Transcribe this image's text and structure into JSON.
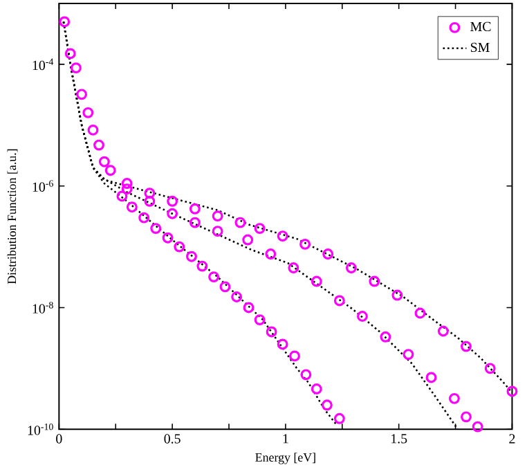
{
  "chart_data": {
    "type": "scatter",
    "xlabel": "Energy  [eV]",
    "ylabel": "Distribution Function  [a.u.]",
    "log": "y",
    "grid": false,
    "legend": "top right",
    "xlim": [
      0,
      2
    ],
    "ylim": [
      1e-10,
      0.001
    ],
    "xticks": [
      0,
      {
        "value": 0.25,
        "label": null
      },
      0.5,
      {
        "value": 0.75,
        "label": null
      },
      1,
      {
        "value": 1.25,
        "label": null
      },
      1.5,
      {
        "value": 1.75,
        "label": null
      },
      2
    ],
    "yticks": [
      {
        "value": 1e-10,
        "label": "10$^{-10}$"
      },
      {
        "value": 1e-08,
        "label": "10$^{-8}$"
      },
      {
        "value": 1e-06,
        "label": "10$^{-6}$"
      },
      {
        "value": 0.0001,
        "label": "10$^{-4}$"
      }
    ],
    "series": [
      {
        "name": "MC",
        "marker": "circle",
        "color": "#ff00ff",
        "x": [
          0.024,
          0.05,
          0.075,
          0.1,
          0.128,
          0.15,
          0.176,
          0.2,
          0.227,
          0.3,
          0.4,
          0.5,
          0.6,
          0.7,
          0.8,
          0.886,
          0.987,
          1.086,
          1.187,
          1.29,
          1.392,
          1.493,
          1.594,
          1.696,
          1.797,
          1.903,
          2.0
        ],
        "values": [
          0.0005,
          0.00015,
          8.7e-05,
          3.2e-05,
          1.6e-05,
          8.3e-06,
          4.7e-06,
          2.5e-06,
          1.8e-06,
          1.1e-06,
          7.6e-07,
          5.6e-07,
          4.2e-07,
          3.2e-07,
          2.5e-07,
          2e-07,
          1.5e-07,
          1.1e-07,
          7.6e-08,
          4.5e-08,
          2.7e-08,
          1.6e-08,
          8.1e-09,
          4.1e-09,
          2.3e-09,
          1e-09,
          4.2e-10
        ]
      },
      {
        "marker": "circle",
        "color": "#ff00ff",
        "x": [
          0.3,
          0.4,
          0.5,
          0.6,
          0.7,
          0.833,
          0.934,
          1.035,
          1.137,
          1.238,
          1.339,
          1.441,
          1.542,
          1.643,
          1.745,
          1.797,
          1.848
        ],
        "values": [
          8.9e-07,
          5.6e-07,
          3.5e-07,
          2.5e-07,
          1.8e-07,
          1.3e-07,
          7.6e-08,
          4.5e-08,
          2.7e-08,
          1.3e-08,
          7.2e-09,
          3.3e-09,
          1.7e-09,
          7.1e-10,
          3.2e-10,
          1.6e-10,
          1.1e-10
        ]
      },
      {
        "marker": "circle",
        "color": "#ff00ff",
        "x": [
          0.278,
          0.322,
          0.375,
          0.427,
          0.48,
          0.531,
          0.585,
          0.632,
          0.683,
          0.733,
          0.784,
          0.837,
          0.886,
          0.938,
          0.987,
          1.04,
          1.09,
          1.137,
          1.183,
          1.238
        ],
        "values": [
          6.8e-07,
          4.5e-07,
          3e-07,
          2e-07,
          1.4e-07,
          1e-07,
          6.9e-08,
          4.8e-08,
          3.2e-08,
          2.2e-08,
          1.5e-08,
          1e-08,
          6.3e-09,
          4e-09,
          2.5e-09,
          1.6e-09,
          7.9e-10,
          4.6e-10,
          2.5e-10,
          1.5e-10
        ]
      },
      {
        "name": "SM",
        "type": "line",
        "line_style": "dotted",
        "color": "#000000",
        "x": [
          0.02,
          0.05,
          0.1,
          0.15,
          0.2,
          0.3,
          0.5,
          0.7,
          0.84,
          1.05,
          1.315,
          1.52,
          1.66,
          1.76,
          1.86,
          1.96,
          2.0
        ],
        "values": [
          0.0005,
          0.0001,
          1e-05,
          2e-06,
          1.26e-06,
          1e-06,
          6.3e-07,
          4e-07,
          2.3e-07,
          1.35e-07,
          4.3e-08,
          1.5e-08,
          6e-09,
          3.2e-09,
          1.5e-09,
          6e-10,
          4e-10
        ]
      },
      {
        "type": "line",
        "line_style": "dotted",
        "color": "#000000",
        "x": [
          0.02,
          0.05,
          0.1,
          0.15,
          0.2,
          0.3,
          0.5,
          0.7,
          0.85,
          1.01,
          1.173,
          1.295,
          1.416,
          1.558,
          1.66,
          1.76
        ],
        "values": [
          0.0005,
          0.0001,
          1e-05,
          2e-06,
          1.3e-06,
          7.9e-07,
          3.5e-07,
          1.6e-07,
          8.9e-08,
          5.4e-08,
          2e-08,
          9.5e-09,
          4e-09,
          1.2e-09,
          3.5e-10,
          1e-10
        ]
      },
      {
        "type": "line",
        "line_style": "dotted",
        "color": "#000000",
        "x": [
          0.02,
          0.05,
          0.1,
          0.15,
          0.2,
          0.3,
          0.5,
          0.7,
          0.9,
          1.05,
          1.1,
          1.173,
          1.224
        ],
        "values": [
          0.0005,
          0.0001,
          1e-05,
          2e-06,
          1.1e-06,
          5.6e-07,
          1.3e-07,
          3.2e-08,
          6.3e-09,
          1e-09,
          5.9e-10,
          2.1e-10,
          1.2e-10
        ]
      }
    ]
  }
}
